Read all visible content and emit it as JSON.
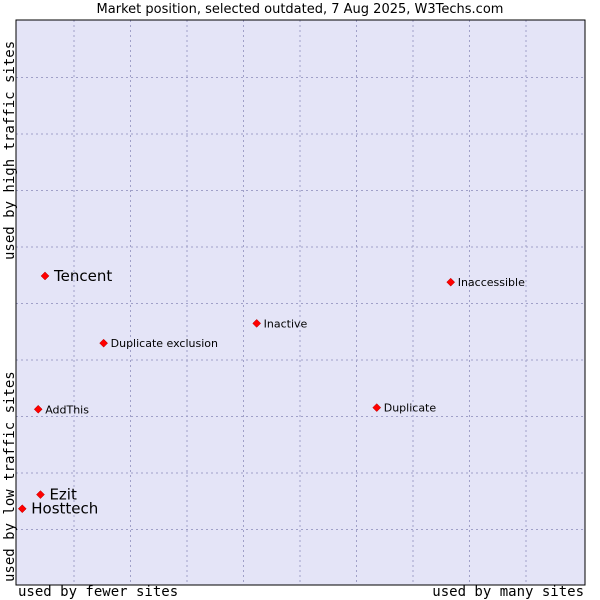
{
  "chart_data": {
    "type": "scatter",
    "title": "Market position, selected outdated, 7 Aug 2025, W3Techs.com",
    "xlabel_left": "used by fewer sites",
    "xlabel_right": "used by many sites",
    "ylabel_top": "used by high traffic sites",
    "ylabel_bottom": "used by low traffic sites",
    "xlim": [
      0,
      100
    ],
    "ylim": [
      0,
      100
    ],
    "grid": true,
    "points": [
      {
        "label": "Tencent",
        "x": 5.1,
        "y": 54.7,
        "emphasis": true
      },
      {
        "label": "Inaccessible",
        "x": 76.4,
        "y": 53.6,
        "emphasis": false
      },
      {
        "label": "Inactive",
        "x": 42.3,
        "y": 46.3,
        "emphasis": false
      },
      {
        "label": "Duplicate exclusion",
        "x": 15.4,
        "y": 42.8,
        "emphasis": false
      },
      {
        "label": "AddThis",
        "x": 3.9,
        "y": 31.1,
        "emphasis": false
      },
      {
        "label": "Duplicate",
        "x": 63.4,
        "y": 31.4,
        "emphasis": false
      },
      {
        "label": "Ezit",
        "x": 4.3,
        "y": 16.0,
        "emphasis": true
      },
      {
        "label": "Hosttech",
        "x": 1.1,
        "y": 13.5,
        "emphasis": true
      }
    ]
  },
  "colors": {
    "plot_bg": "#e4e4f7",
    "grid": "#a0a0c8",
    "point": "#ff0000",
    "frame": "#000000"
  }
}
